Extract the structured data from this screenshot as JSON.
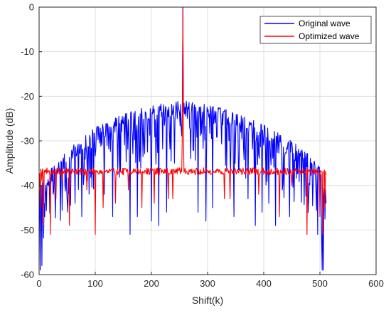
{
  "chart_data": {
    "type": "line",
    "title": "",
    "xlabel": "Shift(k)",
    "ylabel": "Amplitude (dB)",
    "xlim": [
      0,
      600
    ],
    "ylim": [
      -60,
      0
    ],
    "xticks": [
      0,
      100,
      200,
      300,
      400,
      500,
      600
    ],
    "yticks": [
      0,
      -10,
      -20,
      -30,
      -40,
      -50,
      -60
    ],
    "grid": true,
    "legend_position": "top-right",
    "series": [
      {
        "name": "Original wave",
        "color": "#0000ff",
        "peak": {
          "x": 256,
          "y": 0
        },
        "x_range": [
          1,
          511
        ],
        "envelope": [
          [
            5,
            -40
          ],
          [
            10,
            -37
          ],
          [
            30,
            -35
          ],
          [
            60,
            -31
          ],
          [
            100,
            -27
          ],
          [
            150,
            -24
          ],
          [
            200,
            -22
          ],
          [
            256,
            -21
          ],
          [
            310,
            -22
          ],
          [
            360,
            -24
          ],
          [
            410,
            -27
          ],
          [
            450,
            -30
          ],
          [
            480,
            -33
          ],
          [
            500,
            -36
          ],
          [
            505,
            -40
          ]
        ],
        "notable_points": [
          [
            2,
            -59
          ],
          [
            5,
            -58
          ],
          [
            9,
            -44
          ],
          [
            10,
            -47
          ],
          [
            25,
            -42
          ],
          [
            51,
            -46
          ],
          [
            64,
            -44
          ],
          [
            76,
            -47
          ],
          [
            116,
            -42
          ],
          [
            131,
            -47
          ],
          [
            162,
            -51
          ],
          [
            175,
            -47
          ],
          [
            200,
            -48
          ],
          [
            213,
            -49
          ],
          [
            227,
            -46
          ],
          [
            241,
            -35
          ],
          [
            270,
            -34
          ],
          [
            283,
            -46
          ],
          [
            297,
            -48
          ],
          [
            309,
            -45
          ],
          [
            347,
            -47
          ],
          [
            372,
            -43
          ],
          [
            385,
            -49
          ],
          [
            397,
            -46
          ],
          [
            409,
            -44
          ],
          [
            421,
            -49
          ],
          [
            433,
            -41
          ],
          [
            446,
            -47
          ],
          [
            480,
            -43
          ],
          [
            496,
            -51
          ],
          [
            504,
            -59
          ],
          [
            506,
            -59
          ]
        ]
      },
      {
        "name": "Optimized wave",
        "color": "#ff0000",
        "peak": {
          "x": 256,
          "y": 0
        },
        "baseline": -37,
        "x_range": [
          1,
          511
        ],
        "notable_points": [
          [
            2,
            -45
          ],
          [
            5,
            -39
          ],
          [
            8,
            -49
          ],
          [
            20,
            -51
          ],
          [
            30,
            -43
          ],
          [
            41,
            -39
          ],
          [
            54,
            -49
          ],
          [
            85,
            -41
          ],
          [
            100,
            -51
          ],
          [
            114,
            -45
          ],
          [
            136,
            -44
          ],
          [
            159,
            -41
          ],
          [
            183,
            -45
          ],
          [
            205,
            -44
          ],
          [
            230,
            -43
          ],
          [
            238,
            -43
          ],
          [
            330,
            -43
          ],
          [
            340,
            -43
          ],
          [
            391,
            -42
          ],
          [
            428,
            -47
          ],
          [
            450,
            -40
          ],
          [
            477,
            -51
          ],
          [
            500,
            -47
          ],
          [
            505,
            -51
          ],
          [
            509,
            -45
          ]
        ]
      }
    ]
  }
}
